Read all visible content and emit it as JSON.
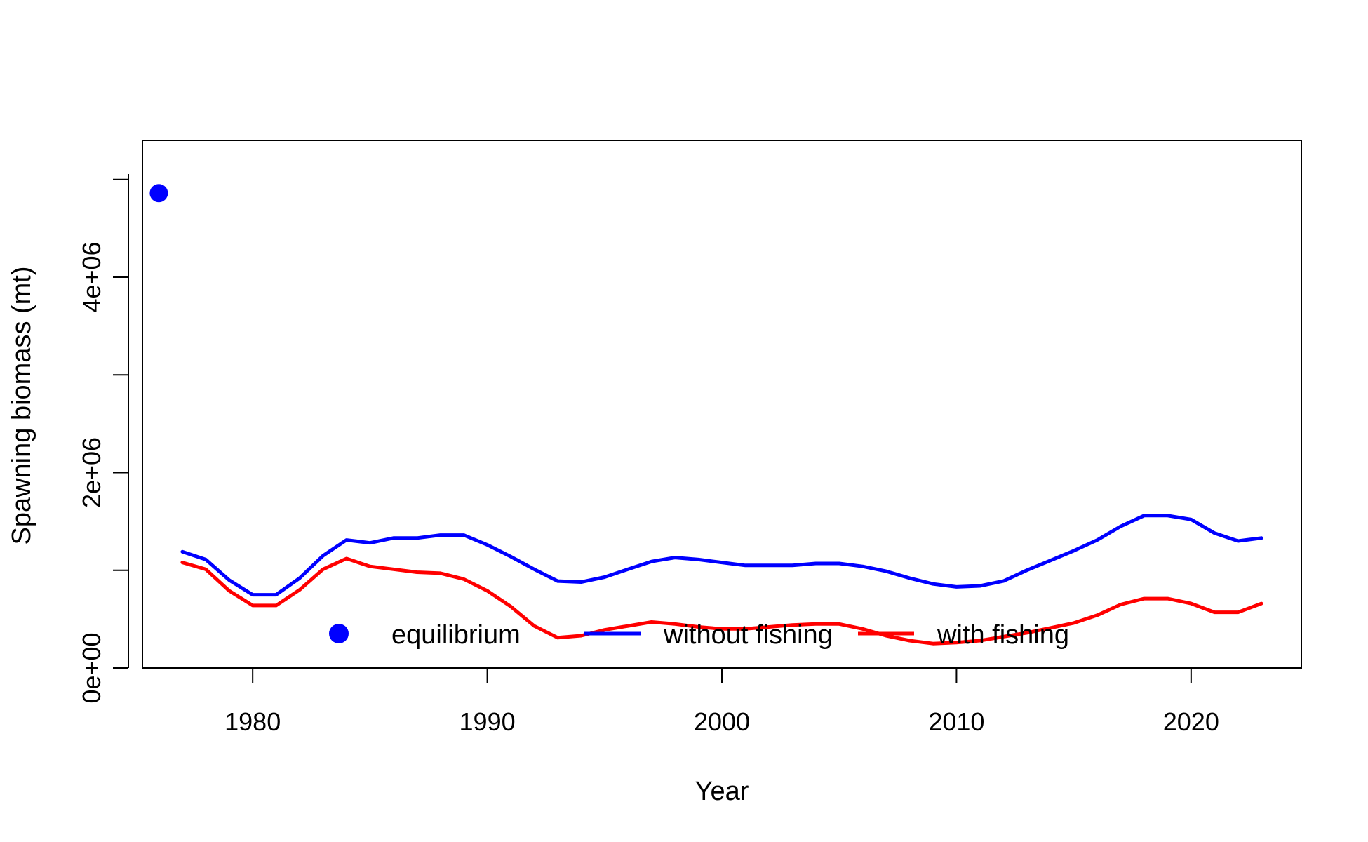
{
  "chart_data": {
    "type": "line",
    "title": "",
    "xlabel": "Year",
    "ylabel": "Spawning biomass (mt)",
    "xlim": [
      1975.3,
      2024.7
    ],
    "ylim": [
      0,
      5400000
    ],
    "x_ticks": [
      1980,
      1990,
      2000,
      2010,
      2020
    ],
    "y_ticks": [
      0,
      1000000,
      2000000,
      3000000,
      4000000,
      5000000
    ],
    "y_tick_labels": {
      "0": "0e+00",
      "2000000": "2e+06",
      "4000000": "4e+06"
    },
    "grid": false,
    "legend_position": "bottom",
    "equilibrium": {
      "name": "equilibrium",
      "x": 1976,
      "y": 4860000,
      "color": "#0000FF"
    },
    "x": [
      1977,
      1978,
      1979,
      1980,
      1981,
      1982,
      1983,
      1984,
      1985,
      1986,
      1987,
      1988,
      1989,
      1990,
      1991,
      1992,
      1993,
      1994,
      1995,
      1996,
      1997,
      1998,
      1999,
      2000,
      2001,
      2002,
      2003,
      2004,
      2005,
      2006,
      2007,
      2008,
      2009,
      2010,
      2011,
      2012,
      2013,
      2014,
      2015,
      2016,
      2017,
      2018,
      2019,
      2020,
      2021,
      2022,
      2023
    ],
    "series": [
      {
        "name": "without fishing",
        "color": "#0000FF",
        "values": [
          1190000,
          1110000,
          900000,
          750000,
          750000,
          920000,
          1150000,
          1310000,
          1280000,
          1330000,
          1330000,
          1360000,
          1360000,
          1260000,
          1140000,
          1010000,
          890000,
          880000,
          930000,
          1010000,
          1090000,
          1130000,
          1110000,
          1080000,
          1050000,
          1050000,
          1050000,
          1070000,
          1070000,
          1040000,
          990000,
          920000,
          860000,
          830000,
          840000,
          890000,
          1000000,
          1100000,
          1200000,
          1310000,
          1450000,
          1560000,
          1560000,
          1520000,
          1380000,
          1300000,
          1330000
        ]
      },
      {
        "name": "with fishing",
        "color": "#FF0000",
        "values": [
          1080000,
          1010000,
          790000,
          640000,
          640000,
          800000,
          1010000,
          1120000,
          1040000,
          1010000,
          980000,
          970000,
          910000,
          790000,
          630000,
          430000,
          310000,
          330000,
          390000,
          430000,
          470000,
          450000,
          420000,
          400000,
          400000,
          420000,
          440000,
          450000,
          450000,
          400000,
          330000,
          280000,
          250000,
          260000,
          280000,
          320000,
          360000,
          410000,
          460000,
          540000,
          650000,
          710000,
          710000,
          660000,
          570000,
          570000,
          660000
        ]
      }
    ]
  }
}
